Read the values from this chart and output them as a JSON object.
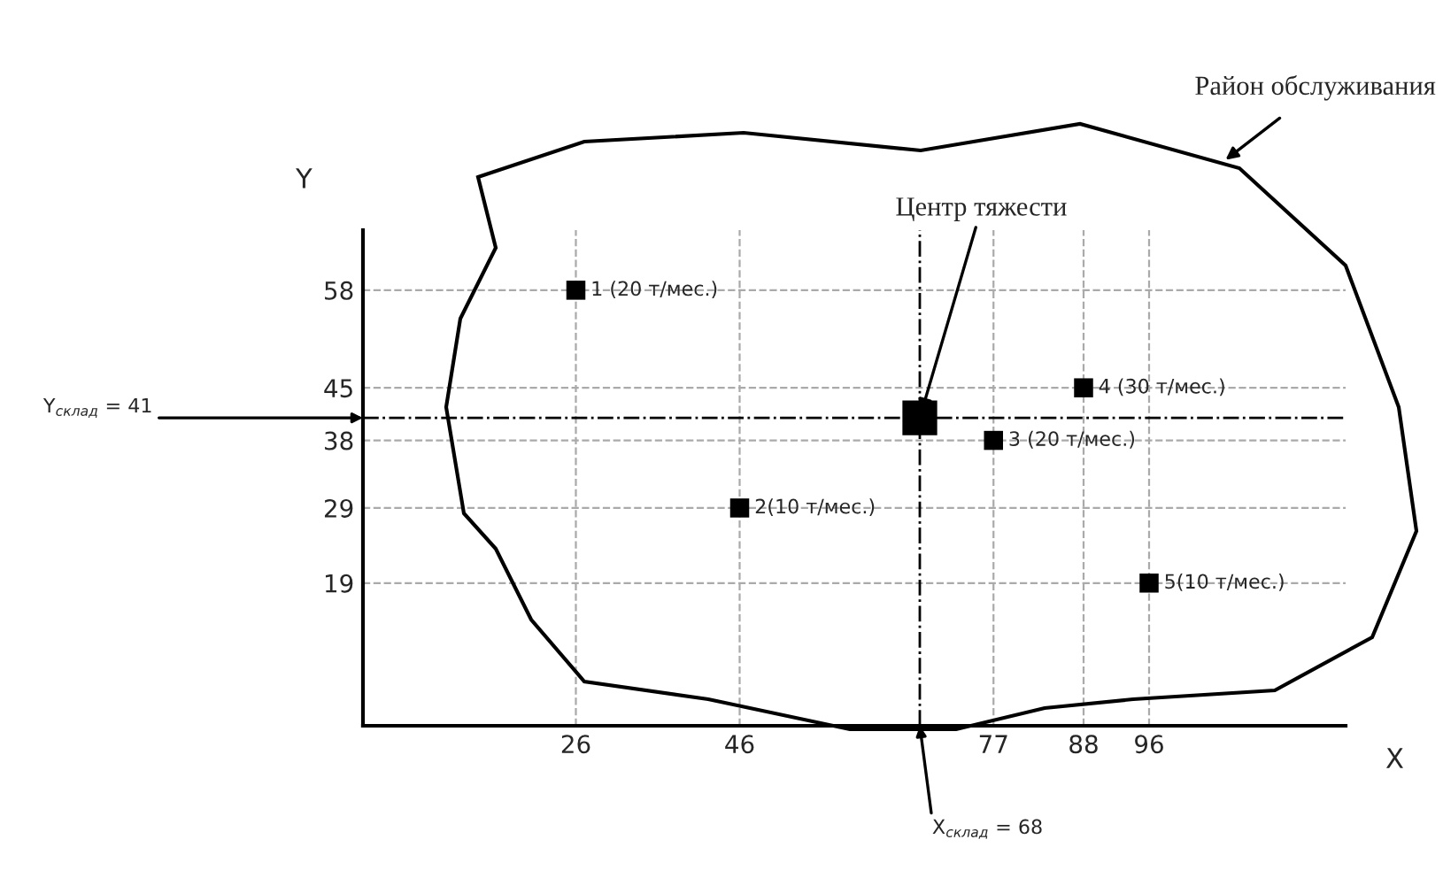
{
  "chart_data": {
    "type": "scatter",
    "xlabel": "X",
    "ylabel": "Y",
    "xlim": [
      0,
      120
    ],
    "ylim": [
      0,
      66
    ],
    "xticks": [
      26,
      46,
      77,
      88,
      96
    ],
    "yticks": [
      19,
      29,
      38,
      45,
      58
    ],
    "series": [
      {
        "color": "#000000",
        "x": [
          26,
          46,
          77,
          88,
          96
        ],
        "values": [
          58,
          29,
          38,
          45,
          19
        ]
      },
      {
        "color": "#000000",
        "x": [
          68
        ],
        "values": [
          41
        ]
      }
    ],
    "marker": "square",
    "grid": true,
    "legend": false,
    "ref_lines": [
      {
        "axis": "y",
        "value": 41,
        "label": "Y$_{склад}$ = 41",
        "line_style": "dashdot"
      },
      {
        "axis": "x",
        "value": 68,
        "label": "X$_{склад}$ = 68",
        "line_style": "dashdot"
      }
    ],
    "annotations": [
      {
        "text": "1 (20 т/мес.)",
        "x": 26,
        "y": 58
      },
      {
        "text": "2(10 т/мес.)",
        "x": 46,
        "y": 29
      },
      {
        "text": "3 (20 т/мес.)",
        "x": 77,
        "y": 38
      },
      {
        "text": "4 (30 т/мес.)",
        "x": 88,
        "y": 45
      },
      {
        "text": "5(10 т/мес.)",
        "x": 96,
        "y": 19
      },
      {
        "text": "Центр тяжести",
        "x": 68,
        "y": 41
      },
      "Район обслуживания"
    ]
  }
}
